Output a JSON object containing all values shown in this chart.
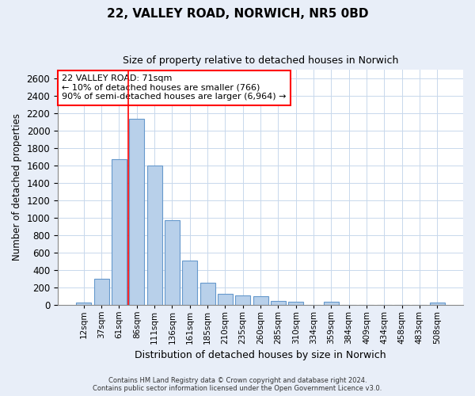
{
  "title1": "22, VALLEY ROAD, NORWICH, NR5 0BD",
  "title2": "Size of property relative to detached houses in Norwich",
  "xlabel": "Distribution of detached houses by size in Norwich",
  "ylabel": "Number of detached properties",
  "categories": [
    "12sqm",
    "37sqm",
    "61sqm",
    "86sqm",
    "111sqm",
    "136sqm",
    "161sqm",
    "185sqm",
    "210sqm",
    "235sqm",
    "260sqm",
    "285sqm",
    "310sqm",
    "334sqm",
    "359sqm",
    "384sqm",
    "409sqm",
    "434sqm",
    "458sqm",
    "483sqm",
    "508sqm"
  ],
  "values": [
    20,
    300,
    1670,
    2140,
    1600,
    970,
    510,
    250,
    120,
    105,
    95,
    40,
    30,
    0,
    30,
    0,
    0,
    0,
    0,
    0,
    20
  ],
  "bar_color": "#b8d0ea",
  "bar_edge_color": "#6699cc",
  "red_line_index": 2,
  "annotation_title": "22 VALLEY ROAD: 71sqm",
  "annotation_line1": "← 10% of detached houses are smaller (766)",
  "annotation_line2": "90% of semi-detached houses are larger (6,964) →",
  "ylim": [
    0,
    2700
  ],
  "yticks": [
    0,
    200,
    400,
    600,
    800,
    1000,
    1200,
    1400,
    1600,
    1800,
    2000,
    2200,
    2400,
    2600
  ],
  "footer1": "Contains HM Land Registry data © Crown copyright and database right 2024.",
  "footer2": "Contains public sector information licensed under the Open Government Licence v3.0.",
  "bg_color": "#e8eef8",
  "plot_bg_color": "#ffffff",
  "grid_color": "#c8d8ec"
}
